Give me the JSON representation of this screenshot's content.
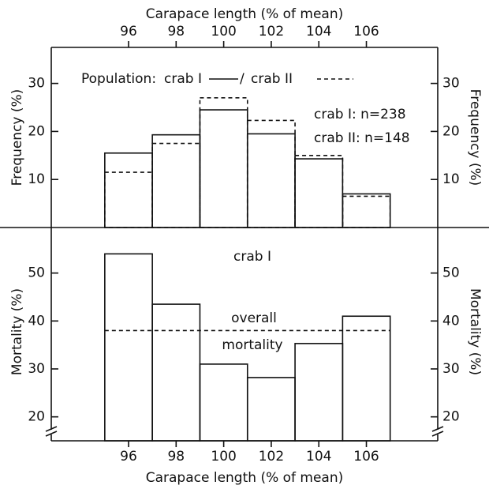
{
  "chart_data": [
    {
      "type": "histogram",
      "xlabel": "Carapace length (% of mean)",
      "xlim": [
        92.75,
        109
      ],
      "xticks": [
        96,
        98,
        100,
        102,
        104,
        106
      ],
      "ylabel": "Frequency (%)",
      "ylim": [
        0,
        37.5
      ],
      "yticks": [
        10,
        20,
        30
      ],
      "bins": [
        95,
        97,
        99,
        101,
        103,
        105,
        107
      ],
      "legend_title": "Population:",
      "legend_separator": "/",
      "series": [
        {
          "name": "crab I",
          "style": "solid",
          "values": [
            15.5,
            19.3,
            24.5,
            19.5,
            14.3,
            7.0
          ]
        },
        {
          "name": "crab II",
          "style": "dashed",
          "values": [
            11.5,
            17.5,
            27.0,
            22.3,
            15.0,
            6.5
          ]
        }
      ],
      "annotations": [
        "crab I: n=238",
        "crab II: n=148"
      ]
    },
    {
      "type": "histogram",
      "xlabel": "Carapace length (% of mean)",
      "xlim": [
        92.75,
        109
      ],
      "xticks": [
        96,
        98,
        100,
        102,
        104,
        106
      ],
      "ylabel": "Mortality (%)",
      "ylim": [
        15,
        59.5
      ],
      "yticks": [
        20,
        30,
        40,
        50
      ],
      "bins": [
        95,
        97,
        99,
        101,
        103,
        105,
        107
      ],
      "series": [
        {
          "name": "crab I",
          "style": "solid",
          "values": [
            54,
            43.5,
            31,
            28.2,
            35.3,
            41
          ]
        }
      ],
      "reference_line": {
        "value": 38,
        "label": [
          "overall",
          "mortality"
        ]
      }
    }
  ]
}
